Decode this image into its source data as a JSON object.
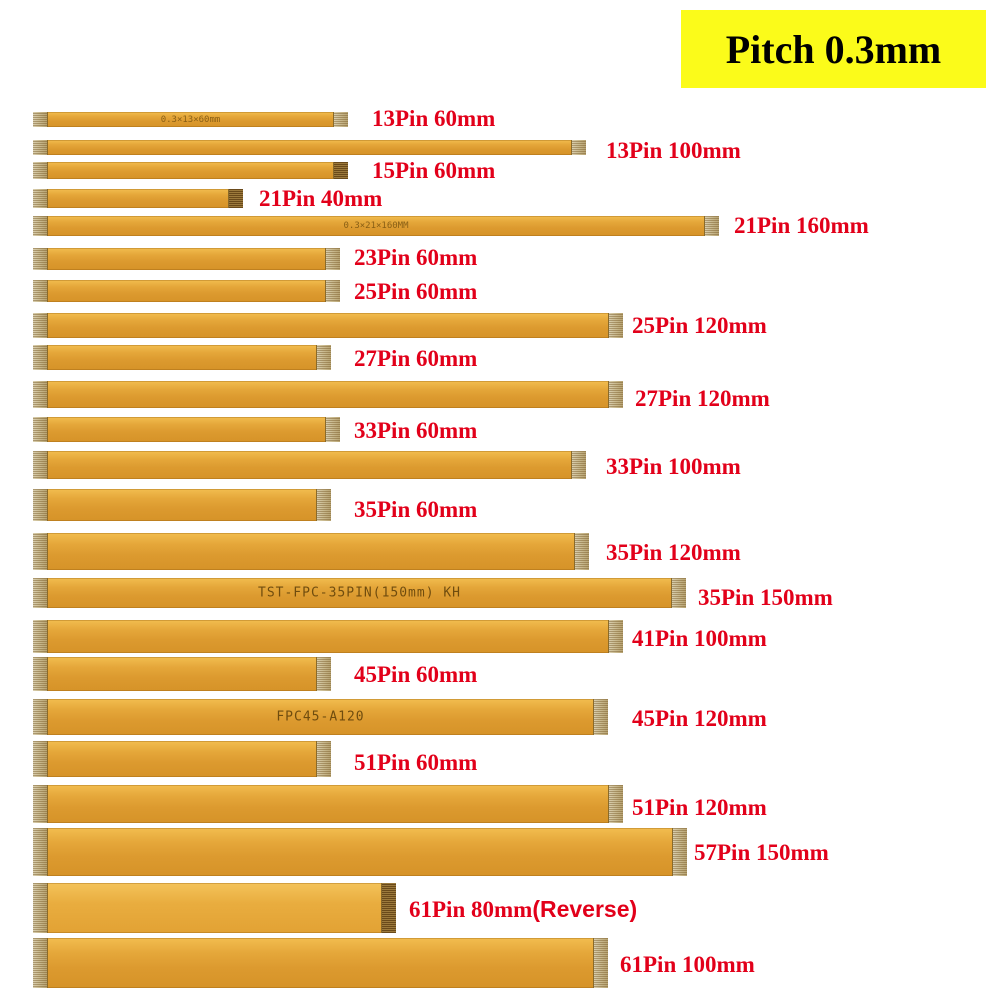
{
  "badge": {
    "text": "Pitch 0.3mm",
    "bg_color": "#fbfb1a",
    "text_color": "#000000"
  },
  "label_color": "#e2001a",
  "cables": [
    {
      "label": "13Pin 60mm",
      "print": "0.3×13×60mm"
    },
    {
      "label": "13Pin 100mm",
      "print": ""
    },
    {
      "label": "15Pin 60mm",
      "print": ""
    },
    {
      "label": "21Pin 40mm",
      "print": ""
    },
    {
      "label": "21Pin 160mm",
      "print": "0.3×21×160MM"
    },
    {
      "label": "23Pin 60mm",
      "print": ""
    },
    {
      "label": "25Pin 60mm",
      "print": ""
    },
    {
      "label": "25Pin 120mm",
      "print": ""
    },
    {
      "label": "27Pin 60mm",
      "print": ""
    },
    {
      "label": "27Pin 120mm",
      "print": ""
    },
    {
      "label": "33Pin 60mm",
      "print": ""
    },
    {
      "label": "33Pin 100mm",
      "print": ""
    },
    {
      "label": "35Pin 60mm",
      "print": ""
    },
    {
      "label": "35Pin 120mm",
      "print": ""
    },
    {
      "label": "35Pin 150mm",
      "print": "TST-FPC-35PIN(150mm) KH"
    },
    {
      "label": "41Pin 100mm",
      "print": ""
    },
    {
      "label": "45Pin 60mm",
      "print": ""
    },
    {
      "label": "45Pin 120mm",
      "print": "FPC45-A120"
    },
    {
      "label": "51Pin 60mm",
      "print": ""
    },
    {
      "label": "51Pin 120mm",
      "print": ""
    },
    {
      "label": "57Pin 150mm",
      "print": ""
    },
    {
      "label": "61Pin 80mm",
      "suffix": "(Reverse)",
      "print": ""
    },
    {
      "label": "61Pin 100mm",
      "print": ""
    }
  ]
}
